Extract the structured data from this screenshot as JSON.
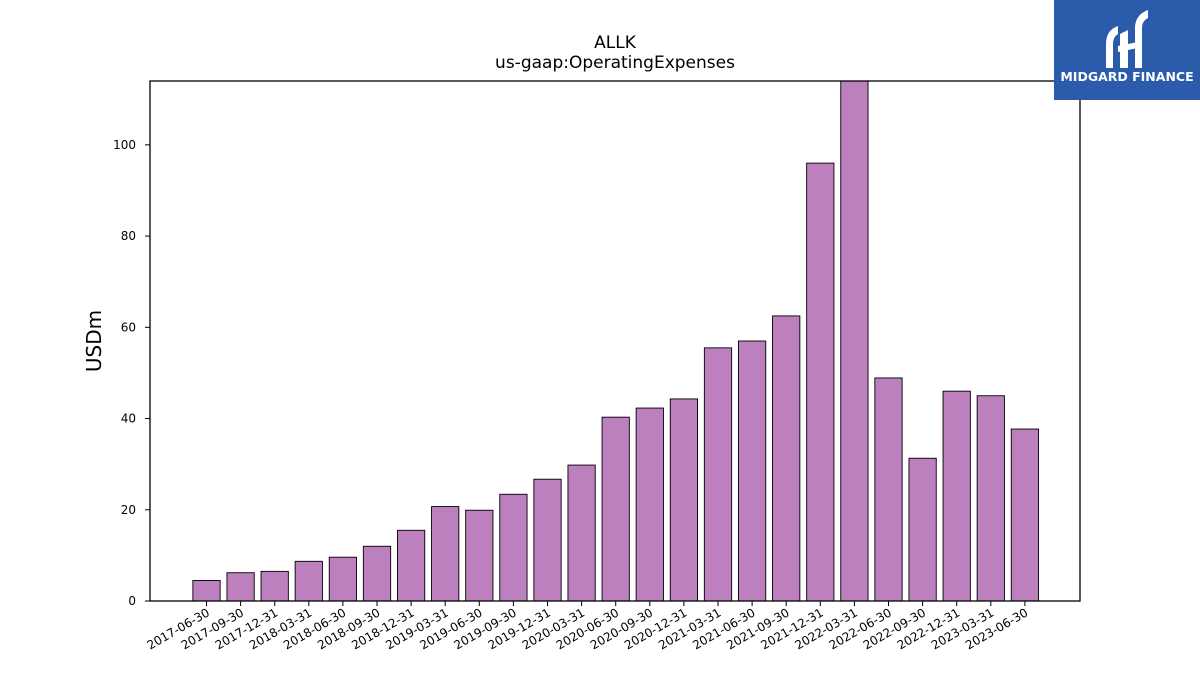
{
  "chart_data": {
    "type": "bar",
    "title": "ALLK",
    "subtitle": "us-gaap:OperatingExpenses",
    "xlabel": "",
    "ylabel": "USDm",
    "ylim": [
      0,
      114
    ],
    "yticks": [
      0,
      20,
      40,
      60,
      80,
      100
    ],
    "grid": false,
    "bar_color": "#bb80bd",
    "bar_edge_color": "#000000",
    "categories": [
      "2017-06-30",
      "2017-09-30",
      "2017-12-31",
      "2018-03-31",
      "2018-06-30",
      "2018-09-30",
      "2018-12-31",
      "2019-03-31",
      "2019-06-30",
      "2019-09-30",
      "2019-12-31",
      "2020-03-31",
      "2020-06-30",
      "2020-09-30",
      "2020-12-31",
      "2021-03-31",
      "2021-06-30",
      "2021-09-30",
      "2021-12-31",
      "2022-03-31",
      "2022-06-30",
      "2022-09-30",
      "2022-12-31",
      "2023-03-31",
      "2023-06-30"
    ],
    "values": [
      4.5,
      6.2,
      6.5,
      8.7,
      9.6,
      12.0,
      15.5,
      20.7,
      19.9,
      23.4,
      26.7,
      29.8,
      40.3,
      42.3,
      44.3,
      55.5,
      57.0,
      62.5,
      96.0,
      114.5,
      48.9,
      31.3,
      46.0,
      45.0,
      37.7
    ]
  },
  "logo": {
    "text": "MIDGARD FINANCE",
    "background": "#2b5bab"
  }
}
